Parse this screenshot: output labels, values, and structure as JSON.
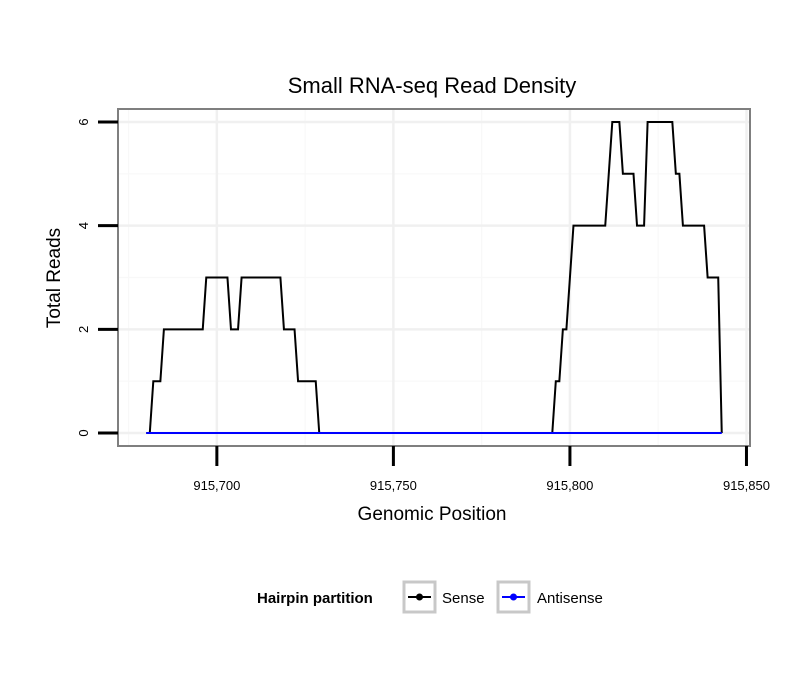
{
  "chart_data": {
    "type": "line",
    "title": "Small RNA-seq Read Density",
    "xlabel": "Genomic Position",
    "ylabel": "Total Reads",
    "xlim": [
      915672,
      915851
    ],
    "ylim": [
      -0.25,
      6.25
    ],
    "x_ticks": [
      915700,
      915750,
      915800,
      915850
    ],
    "x_tick_labels": [
      "915,700",
      "915,750",
      "915,800",
      "915,850"
    ],
    "y_ticks": [
      0,
      2,
      4,
      6
    ],
    "y_tick_labels": [
      "0",
      "2",
      "4",
      "6"
    ],
    "grid": true,
    "legend": {
      "title": "Hairpin partition",
      "position": "bottom",
      "entries": [
        {
          "label": "Sense",
          "color": "#000000"
        },
        {
          "label": "Antisense",
          "color": "#0000ff"
        }
      ]
    },
    "series": [
      {
        "name": "Sense",
        "color": "#000000",
        "points": [
          [
            915680,
            0
          ],
          [
            915681,
            0
          ],
          [
            915682,
            1
          ],
          [
            915684,
            1
          ],
          [
            915685,
            2
          ],
          [
            915696,
            2
          ],
          [
            915697,
            3
          ],
          [
            915703,
            3
          ],
          [
            915704,
            2
          ],
          [
            915706,
            2
          ],
          [
            915707,
            3
          ],
          [
            915718,
            3
          ],
          [
            915719,
            2
          ],
          [
            915722,
            2
          ],
          [
            915723,
            1
          ],
          [
            915728,
            1
          ],
          [
            915729,
            0
          ],
          [
            915795,
            0
          ],
          [
            915796,
            1
          ],
          [
            915797,
            1
          ],
          [
            915798,
            2
          ],
          [
            915799,
            2
          ],
          [
            915801,
            4
          ],
          [
            915810,
            4
          ],
          [
            915812,
            6
          ],
          [
            915814,
            6
          ],
          [
            915815,
            5
          ],
          [
            915818,
            5
          ],
          [
            915819,
            4
          ],
          [
            915821,
            4
          ],
          [
            915822,
            6
          ],
          [
            915829,
            6
          ],
          [
            915830,
            5
          ],
          [
            915831,
            5
          ],
          [
            915832,
            4
          ],
          [
            915838,
            4
          ],
          [
            915839,
            3
          ],
          [
            915842,
            3
          ],
          [
            915843,
            0
          ]
        ]
      },
      {
        "name": "Antisense",
        "color": "#0000ff",
        "points": [
          [
            915680,
            0
          ],
          [
            915843,
            0
          ]
        ]
      }
    ]
  }
}
